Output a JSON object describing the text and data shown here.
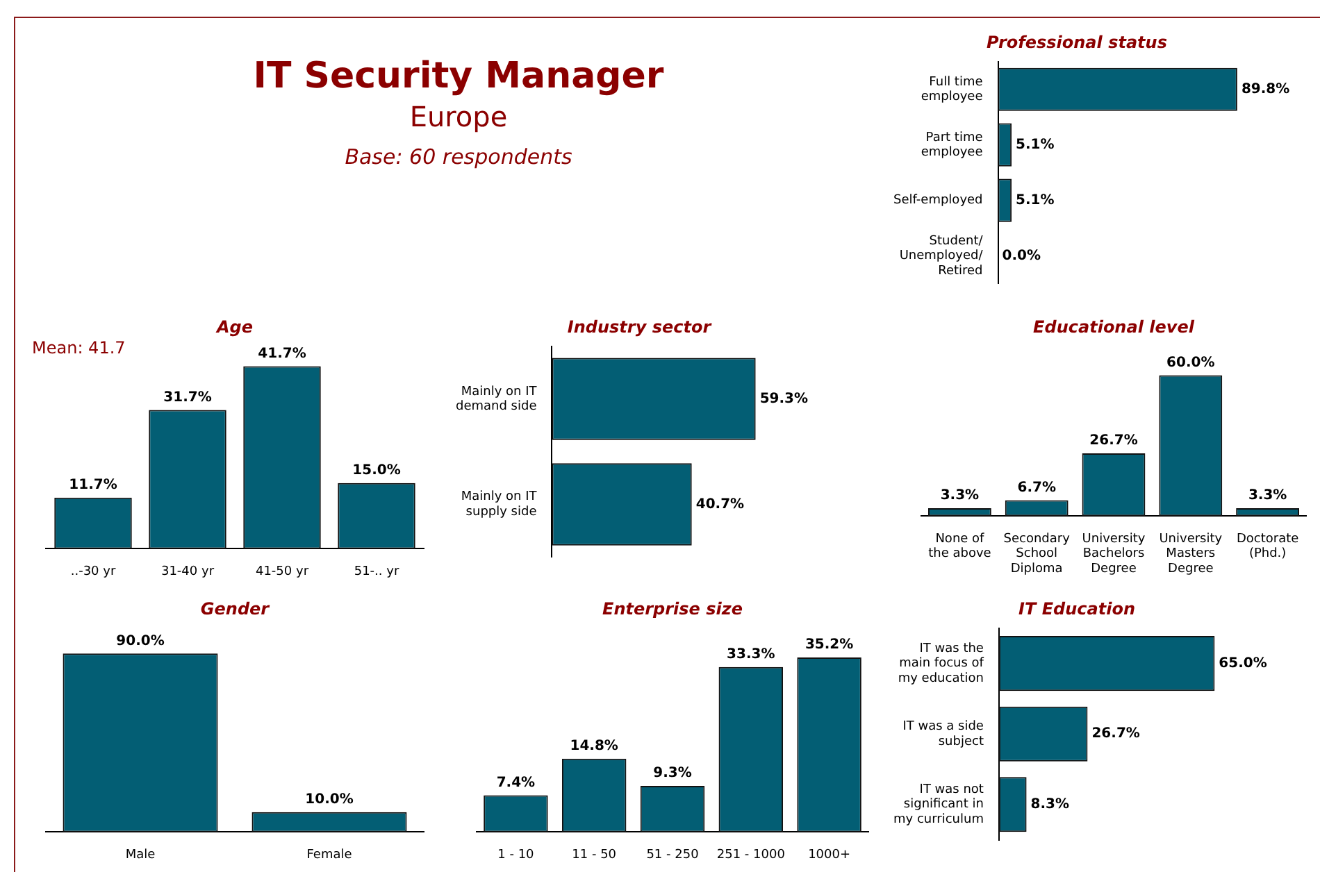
{
  "chart_data": [
    {
      "type": "other",
      "title": "IT Security Manager",
      "subtitle": "Europe",
      "annotations": [
        "Base: 60 respondents"
      ]
    },
    {
      "type": "bar",
      "orientation": "horizontal",
      "title": "Professional status",
      "categories": [
        "Full time employee",
        "Part time employee",
        "Self-employed",
        "Student/ Unemployed/ Retired"
      ],
      "values": [
        89.8,
        5.1,
        5.1,
        0.0
      ],
      "value_labels": [
        "89.8%",
        "5.1%",
        "5.1%",
        "0.0%"
      ],
      "color": "#035e74"
    },
    {
      "type": "bar",
      "title": "Age",
      "categories": [
        "..-30 yr",
        "31-40 yr",
        "41-50 yr",
        "51-.. yr"
      ],
      "values": [
        11.7,
        31.7,
        41.7,
        15.0
      ],
      "value_labels": [
        "11.7%",
        "31.7%",
        "41.7%",
        "15.0%"
      ],
      "color": "#035e74",
      "annotations": [
        "Mean: 41.7"
      ]
    },
    {
      "type": "bar",
      "orientation": "horizontal",
      "title": "Industry sector",
      "categories": [
        "Mainly on IT demand side",
        "Mainly on IT supply side"
      ],
      "values": [
        59.3,
        40.7
      ],
      "value_labels": [
        "59.3%",
        "40.7%"
      ],
      "color": "#035e74"
    },
    {
      "type": "bar",
      "title": "Educational level",
      "categories": [
        "None of the above",
        "Secondary School Diploma",
        "University Bachelors Degree",
        "University Masters Degree",
        "Doctorate (Phd.)"
      ],
      "values": [
        3.3,
        6.7,
        26.7,
        60.0,
        3.3
      ],
      "value_labels": [
        "3.3%",
        "6.7%",
        "26.7%",
        "60.0%",
        "3.3%"
      ],
      "color": "#035e74"
    },
    {
      "type": "bar",
      "title": "Gender",
      "categories": [
        "Male",
        "Female"
      ],
      "values": [
        90.0,
        10.0
      ],
      "value_labels": [
        "90.0%",
        "10.0%"
      ],
      "color": "#035e74"
    },
    {
      "type": "bar",
      "title": "Enterprise size",
      "categories": [
        "1 - 10",
        "11 - 50",
        "51 - 250",
        "251 - 1000",
        "1000+"
      ],
      "values": [
        7.4,
        14.8,
        9.3,
        33.3,
        35.2
      ],
      "value_labels": [
        "7.4%",
        "14.8%",
        "9.3%",
        "33.3%",
        "35.2%"
      ],
      "color": "#035e74"
    },
    {
      "type": "bar",
      "orientation": "horizontal",
      "title": "IT Education",
      "categories": [
        "IT was the main focus of my education",
        "IT was a side subject",
        "IT was not significant in my curriculum"
      ],
      "values": [
        65.0,
        26.7,
        8.3
      ],
      "value_labels": [
        "65.0%",
        "26.7%",
        "8.3%"
      ],
      "color": "#035e74"
    }
  ]
}
